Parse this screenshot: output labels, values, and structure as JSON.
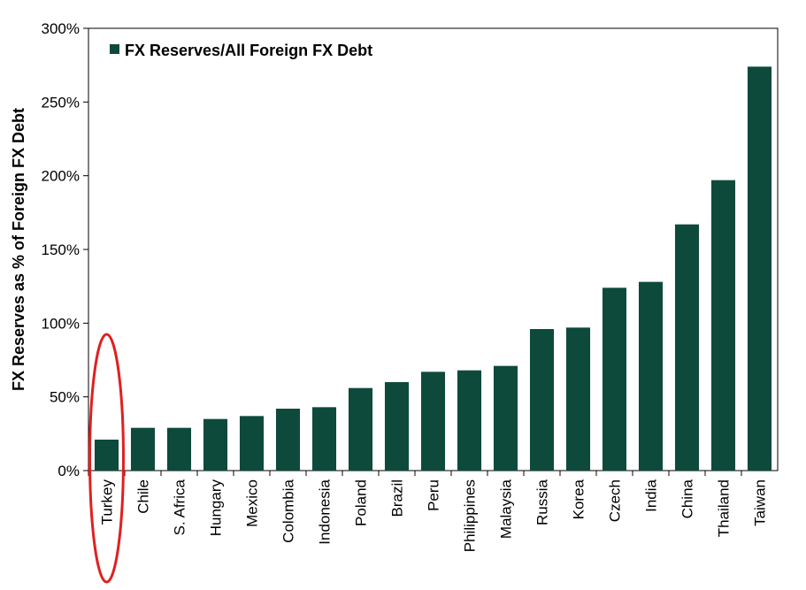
{
  "chart_data": {
    "type": "bar",
    "ylabel": "FX Reserves as % of Foreign FX Debt",
    "ylim": [
      0,
      300
    ],
    "yticks": [
      {
        "value": 0,
        "label": "0%"
      },
      {
        "value": 50,
        "label": "50%"
      },
      {
        "value": 100,
        "label": "100%"
      },
      {
        "value": 150,
        "label": "150%"
      },
      {
        "value": 200,
        "label": "200%"
      },
      {
        "value": 250,
        "label": "250%"
      },
      {
        "value": 300,
        "label": "300%"
      }
    ],
    "categories": [
      "Turkey",
      "Chile",
      "S. Africa",
      "Hungary",
      "Mexico",
      "Colombia",
      "Indonesia",
      "Poland",
      "Brazil",
      "Peru",
      "Philippines",
      "Malaysia",
      "Russia",
      "Korea",
      "Czech",
      "India",
      "China",
      "Thailand",
      "Taiwan"
    ],
    "series": [
      {
        "name": "FX Reserves/All Foreign FX Debt",
        "color": "#0d4a3c",
        "values": [
          21,
          29,
          29,
          35,
          37,
          42,
          43,
          56,
          60,
          67,
          68,
          71,
          96,
          97,
          124,
          128,
          167,
          197,
          274
        ]
      }
    ],
    "legend": {
      "position": "top-left"
    },
    "grid": false,
    "highlight": {
      "category": "Turkey",
      "shape": "ellipse",
      "color": "#e02020"
    }
  }
}
